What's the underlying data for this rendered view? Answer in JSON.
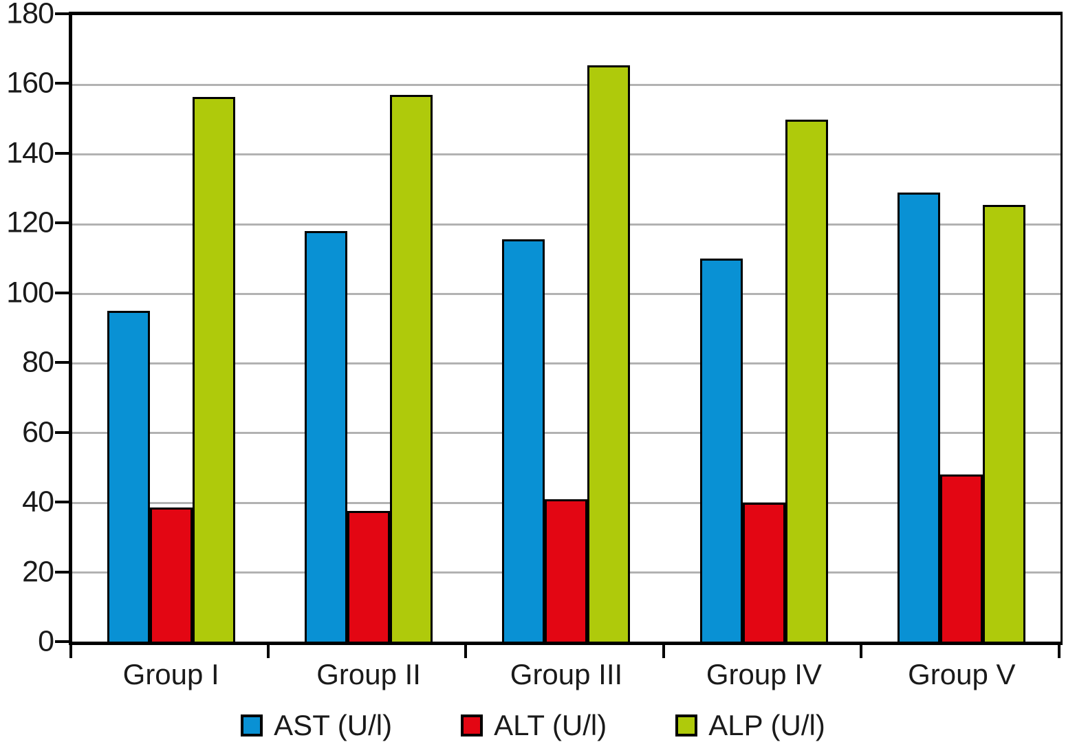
{
  "chart_data": {
    "type": "bar",
    "title": "",
    "categories": [
      "Group I",
      "Group II",
      "Group III",
      "Group IV",
      "Group V"
    ],
    "series": [
      {
        "name": "AST (U/l)",
        "color": "#0991d4",
        "values": [
          95,
          118,
          115.5,
          110,
          129
        ]
      },
      {
        "name": "ALT (U/l)",
        "color": "#e30613",
        "values": [
          38.5,
          37.5,
          41,
          40,
          48
        ]
      },
      {
        "name": "ALP (U/l)",
        "color": "#afca0b",
        "values": [
          156.5,
          157,
          165.5,
          150,
          125.5
        ]
      }
    ],
    "ylim": [
      0,
      180
    ],
    "ytick_step": 20,
    "ytick_labels": [
      "0",
      "20",
      "40",
      "60",
      "80",
      "100",
      "120",
      "140",
      "160",
      "180"
    ],
    "xlabel": "",
    "ylabel": "",
    "grid": "horizontal-only",
    "gridline_color": "#b2b2b2",
    "axis_color": "#000000",
    "background_color": "#ffffff",
    "legend_position": "bottom-center"
  }
}
